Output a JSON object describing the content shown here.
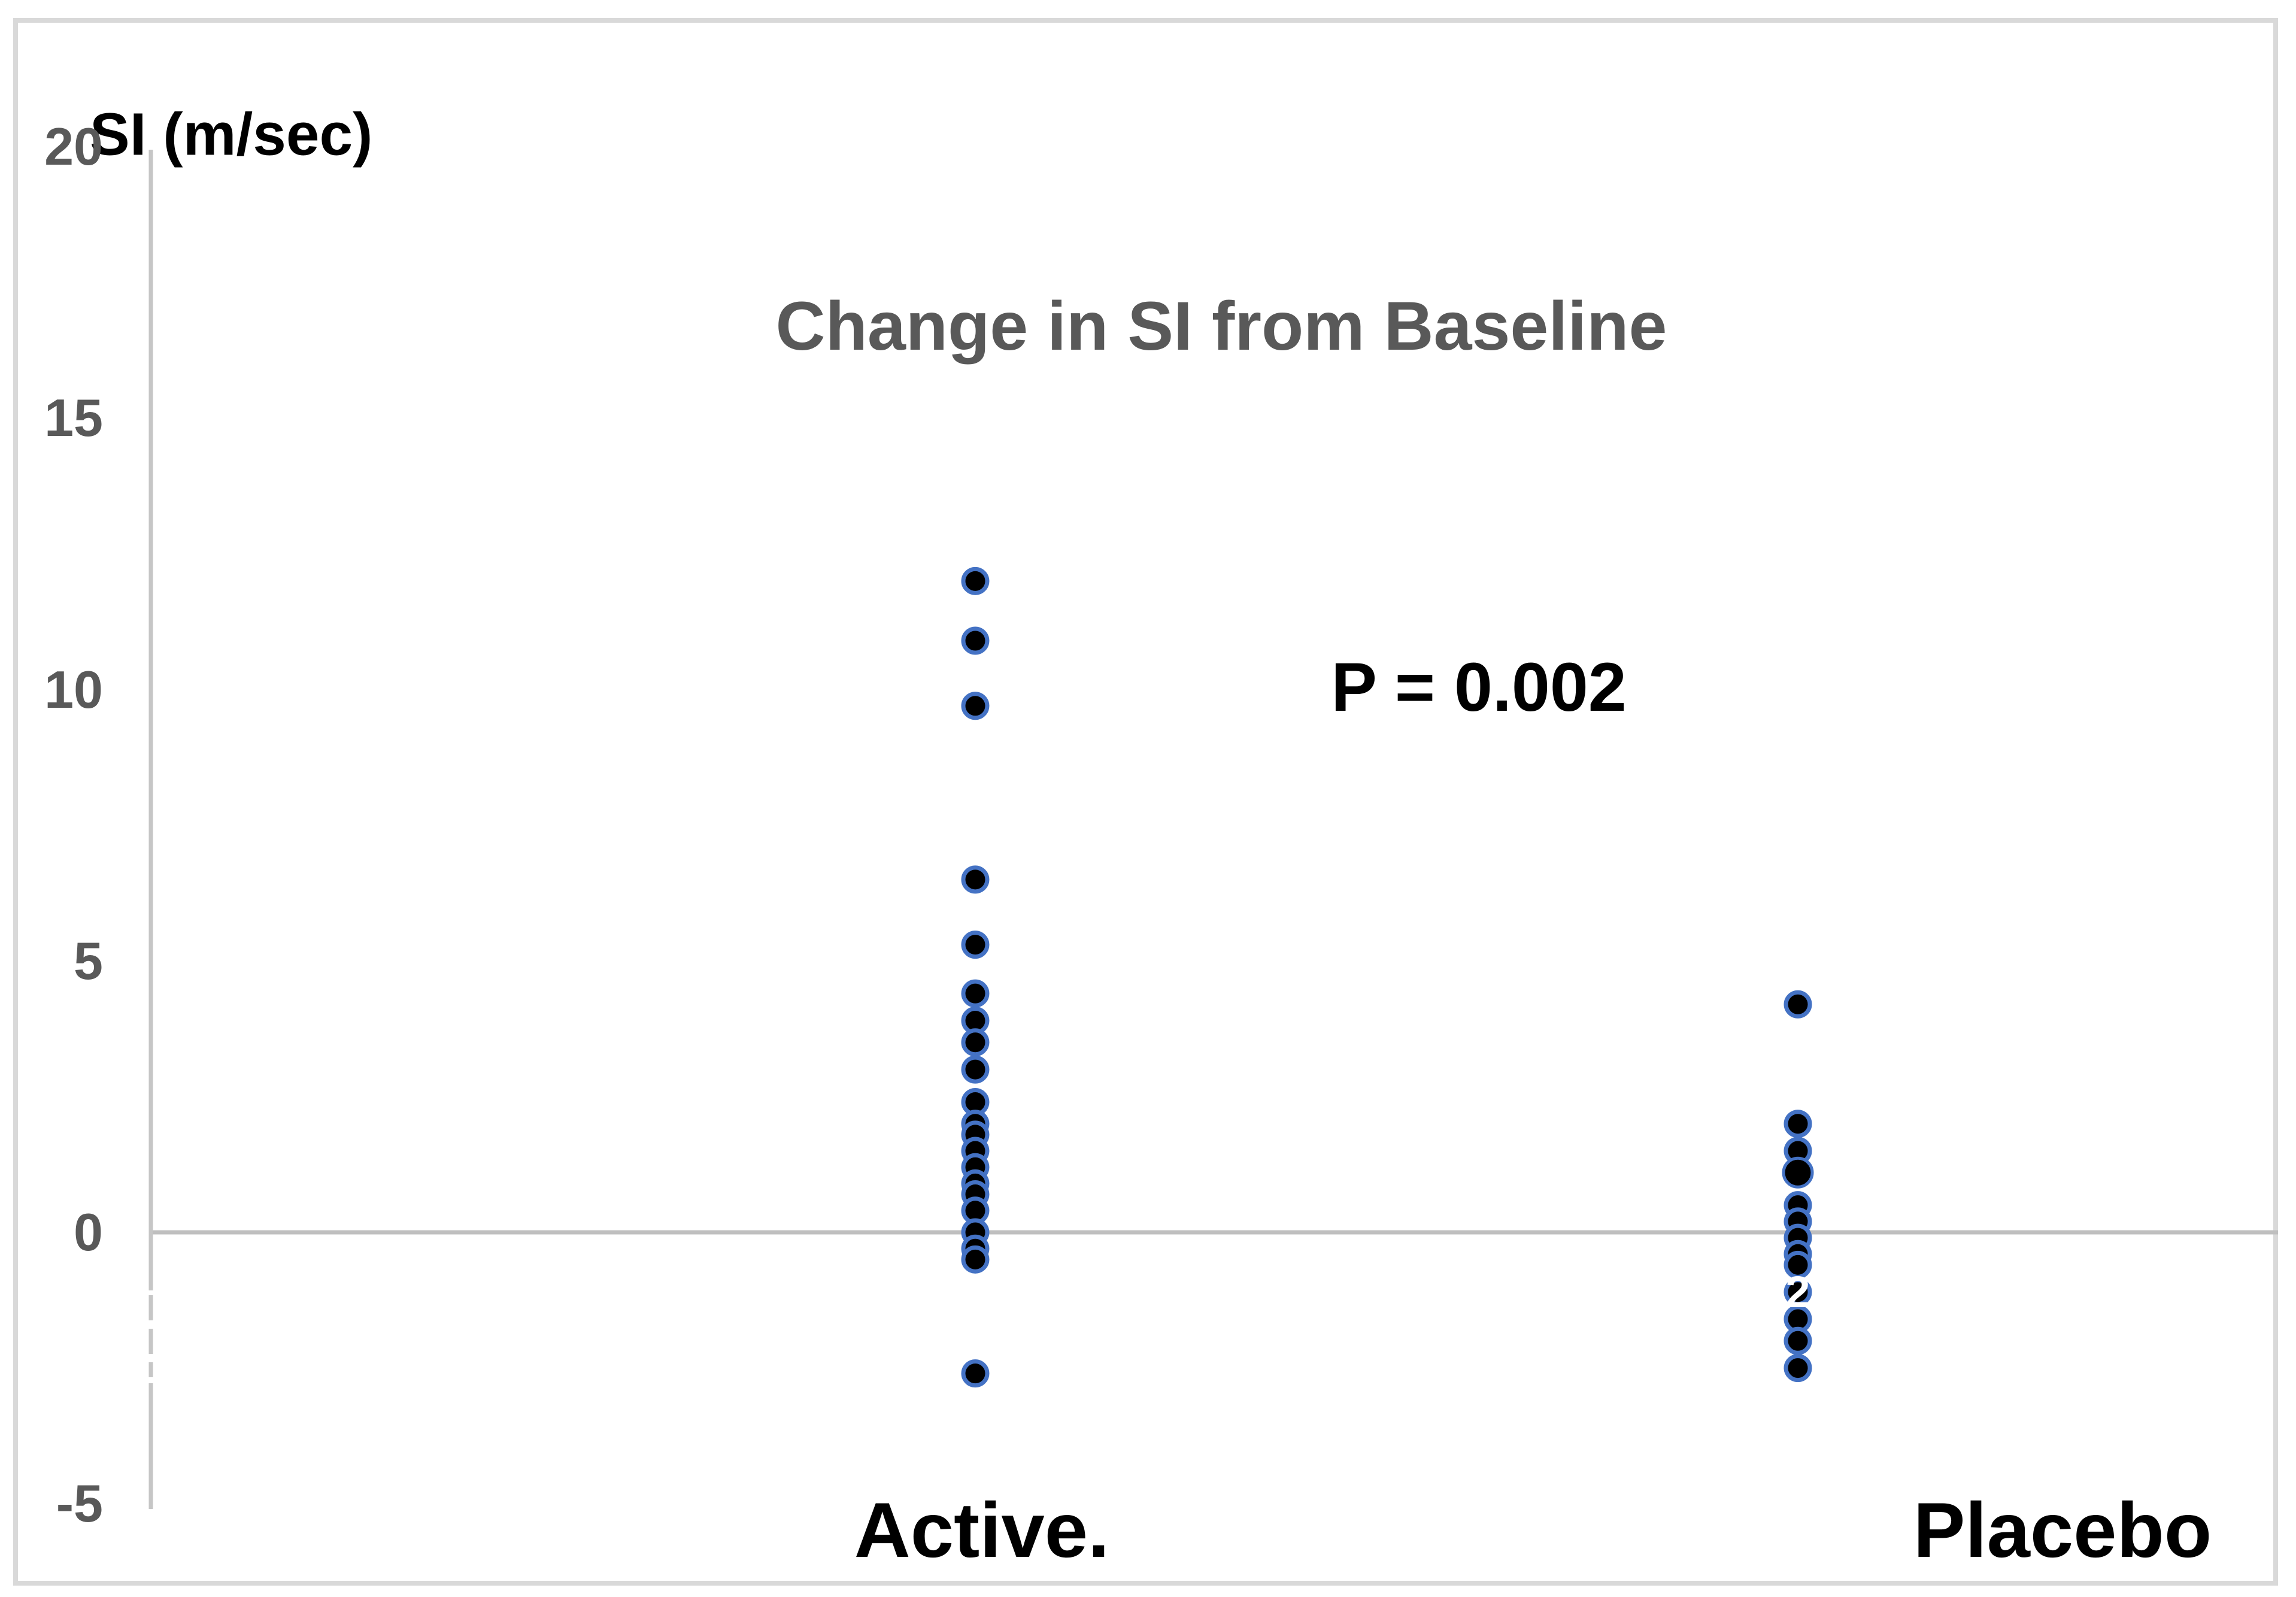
{
  "window": {
    "background_color": "#FFFFFF",
    "border_color": "#D9D9D9"
  },
  "chart": {
    "title": "Change in SI from Baseline",
    "y_axis_title": "SI (m/sec)",
    "p_value_annotation": "P = 0.002",
    "y_tick_labels": [
      "20",
      "15",
      "10",
      "5",
      "0",
      "-5"
    ],
    "category_labels": [
      "Active.",
      "Placebo"
    ],
    "point_count_label": "2",
    "colors": {
      "marker_ring": "#4472C4",
      "marker_fill": "#000000",
      "axis_line": "#BFBFBF",
      "gray_text": "#595959",
      "black_text": "#000000"
    }
  },
  "chart_data": {
    "type": "scatter",
    "title": "Change in SI from Baseline",
    "ylabel": "SI (m/sec)",
    "ylim": [
      -5,
      20
    ],
    "yticks": [
      20,
      15,
      10,
      5,
      0,
      -5
    ],
    "annotation": "P = 0.002",
    "grid": "zero-line-only",
    "legend_position": "none",
    "categories": [
      "Active.",
      "Placebo"
    ],
    "series": [
      {
        "name": "Active.",
        "values": [
          12.0,
          10.9,
          9.7,
          6.5,
          5.3,
          4.4,
          3.9,
          3.5,
          3.0,
          2.4,
          2.0,
          1.8,
          1.5,
          1.2,
          0.9,
          0.7,
          0.4,
          0.0,
          -0.3,
          -0.5,
          -2.6
        ]
      },
      {
        "name": "Placebo",
        "values": [
          4.2,
          2.0,
          1.5,
          1.1,
          0.5,
          0.2,
          -0.1,
          -0.4,
          -0.6,
          -1.1,
          -1.6,
          -2.0,
          -2.5
        ],
        "emphasized_value": 1.1,
        "point_label": {
          "value": -1.1,
          "text": "2"
        }
      }
    ]
  }
}
